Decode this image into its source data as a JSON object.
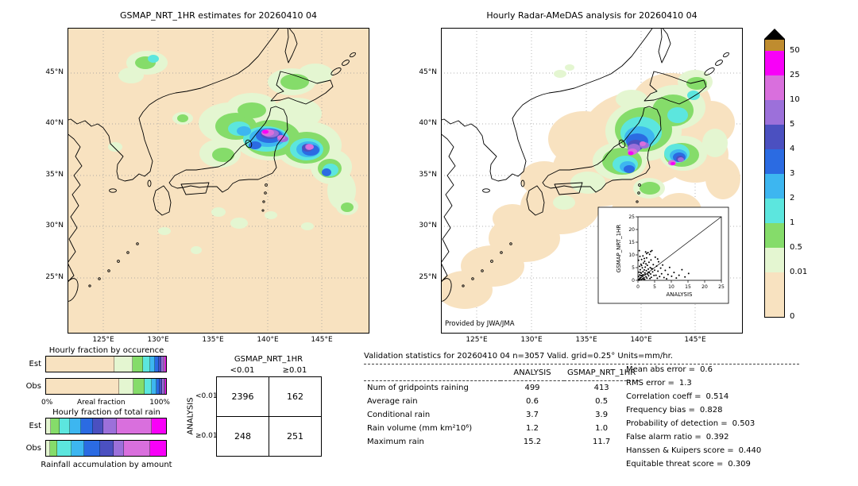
{
  "palette": {
    "peach": "#f8e2c0",
    "palegreen": "#e4f6d1",
    "green": "#85dc6a",
    "cyan": "#5ce6de",
    "lightblue": "#3db6f0",
    "blue": "#2b6be2",
    "navy": "#4b50c0",
    "purple": "#9c70da",
    "orchid": "#d96fdd",
    "magenta": "#f800f8",
    "tan": "#bf8c2f",
    "overflow": "#000000"
  },
  "chart_data": [
    {
      "type": "map",
      "name": "gsmap-estimates-map",
      "title": "GSMAP_NRT_1HR estimates for 20260410 04",
      "lat_ticks": [
        "25°N",
        "30°N",
        "35°N",
        "40°N",
        "45°N"
      ],
      "lon_ticks": [
        "125°E",
        "130°E",
        "135°E",
        "140°E",
        "145°E"
      ],
      "units": "mm/hr"
    },
    {
      "type": "map",
      "name": "radar-amedas-map",
      "title": "Hourly Radar-AMeDAS analysis for 20260410 04",
      "credit": "Provided by JWA/JMA",
      "units": "mm/hr"
    },
    {
      "type": "legend",
      "name": "rain-rate-colorbar",
      "labels": [
        "50",
        "25",
        "10",
        "5",
        "4",
        "3",
        "2",
        "1",
        "0.5",
        "0.01",
        "0"
      ],
      "segment_colors": [
        "tan",
        "magenta",
        "orchid",
        "purple",
        "navy",
        "blue",
        "lightblue",
        "cyan",
        "green",
        "palegreen",
        "peach"
      ]
    },
    {
      "type": "bar",
      "stacked": true,
      "name": "hourly-fraction-by-occurrence",
      "title": "Hourly fraction by occurence",
      "categories": [
        "Est",
        "Obs"
      ],
      "axis": {
        "min_label": "0%",
        "mid_label": "Areal fraction",
        "max_label": "100%"
      },
      "series": [
        {
          "name": "Est",
          "segments": [
            [
              "peach",
              57
            ],
            [
              "palegreen",
              15
            ],
            [
              "green",
              9
            ],
            [
              "cyan",
              6
            ],
            [
              "lightblue",
              4
            ],
            [
              "blue",
              3
            ],
            [
              "navy",
              2
            ],
            [
              "purple",
              2
            ],
            [
              "orchid",
              1.5
            ],
            [
              "magenta",
              0.5
            ]
          ]
        },
        {
          "name": "Obs",
          "segments": [
            [
              "peach",
              61
            ],
            [
              "palegreen",
              12
            ],
            [
              "green",
              9
            ],
            [
              "cyan",
              6
            ],
            [
              "lightblue",
              4
            ],
            [
              "blue",
              3
            ],
            [
              "navy",
              2
            ],
            [
              "purple",
              1.5
            ],
            [
              "orchid",
              1
            ],
            [
              "magenta",
              0.5
            ]
          ]
        }
      ]
    },
    {
      "type": "bar",
      "stacked": true,
      "name": "hourly-fraction-of-total-rain",
      "title": "Hourly fraction of total rain",
      "footer_label": "Rainfall accumulation by amount",
      "categories": [
        "Est",
        "Obs"
      ],
      "series": [
        {
          "name": "Est",
          "segments": [
            [
              "palegreen",
              4
            ],
            [
              "green",
              7
            ],
            [
              "cyan",
              9
            ],
            [
              "lightblue",
              9
            ],
            [
              "blue",
              10
            ],
            [
              "navy",
              9
            ],
            [
              "purple",
              11
            ],
            [
              "orchid",
              29
            ],
            [
              "magenta",
              12
            ]
          ]
        },
        {
          "name": "Obs",
          "segments": [
            [
              "palegreen",
              3
            ],
            [
              "green",
              6
            ],
            [
              "cyan",
              12
            ],
            [
              "lightblue",
              11
            ],
            [
              "blue",
              13
            ],
            [
              "navy",
              11
            ],
            [
              "purple",
              9
            ],
            [
              "orchid",
              22
            ],
            [
              "magenta",
              13
            ]
          ]
        }
      ]
    },
    {
      "type": "table",
      "name": "contingency-table",
      "title": "GSMAP_NRT_1HR",
      "row_axis": "ANALYSIS",
      "col_labels": [
        "<0.01",
        "≥0.01"
      ],
      "row_labels": [
        "<0.01",
        "≥0.01"
      ],
      "values": [
        [
          2396,
          162
        ],
        [
          248,
          251
        ]
      ]
    },
    {
      "type": "table",
      "name": "validation-statistics",
      "title": "Validation statistics for 20260410 04  n=3057 Valid. grid=0.25°  Units=mm/hr.",
      "col_headers": [
        "ANALYSIS",
        "GSMAP_NRT_1HR"
      ],
      "rows": [
        {
          "label": "Num of gridpoints raining",
          "analysis": "499",
          "gsmap": "413"
        },
        {
          "label": "Average rain",
          "analysis": "0.6",
          "gsmap": "0.5"
        },
        {
          "label": "Conditional rain",
          "analysis": "3.7",
          "gsmap": "3.9"
        },
        {
          "label": "Rain volume (mm km²10⁶)",
          "analysis": "1.2",
          "gsmap": "1.0"
        },
        {
          "label": "Maximum rain",
          "analysis": "15.2",
          "gsmap": "11.7"
        }
      ],
      "scores": [
        {
          "label": "Mean abs error =",
          "value": "0.6"
        },
        {
          "label": "RMS error =",
          "value": "1.3"
        },
        {
          "label": "Correlation coeff =",
          "value": "0.514"
        },
        {
          "label": "Frequency bias =",
          "value": "0.828"
        },
        {
          "label": "Probability of detection =",
          "value": "0.503"
        },
        {
          "label": "False alarm ratio =",
          "value": "0.392"
        },
        {
          "label": "Hanssen & Kuipers score =",
          "value": "0.440"
        },
        {
          "label": "Equitable threat score =",
          "value": "0.309"
        }
      ]
    },
    {
      "type": "scatter",
      "name": "gsmap-vs-analysis-inset",
      "xlabel": "ANALYSIS",
      "ylabel": "GSMAP_NRT_1HR",
      "xlim": [
        0,
        25
      ],
      "ylim": [
        0,
        25
      ],
      "ticks": [
        0,
        5,
        10,
        15,
        20,
        25
      ],
      "identity_line": true,
      "points": [
        [
          0.1,
          0.2
        ],
        [
          0.2,
          1.5
        ],
        [
          0.3,
          0.4
        ],
        [
          0.3,
          3.2
        ],
        [
          0.4,
          0.1
        ],
        [
          0.5,
          2.1
        ],
        [
          0.5,
          5.5
        ],
        [
          0.6,
          0.8
        ],
        [
          0.7,
          4.2
        ],
        [
          0.8,
          1.1
        ],
        [
          0.9,
          6.3
        ],
        [
          1,
          0.3
        ],
        [
          1,
          2.8
        ],
        [
          1.1,
          8.2
        ],
        [
          1.2,
          1.7
        ],
        [
          1.3,
          4.9
        ],
        [
          1.4,
          0.6
        ],
        [
          1.5,
          3.4
        ],
        [
          1.5,
          9.6
        ],
        [
          1.6,
          2.2
        ],
        [
          1.7,
          6.8
        ],
        [
          1.8,
          1
        ],
        [
          1.9,
          4.1
        ],
        [
          2,
          0.4
        ],
        [
          2,
          7.5
        ],
        [
          2.1,
          2.9
        ],
        [
          2.2,
          5.2
        ],
        [
          2.3,
          11.2
        ],
        [
          2.4,
          1.4
        ],
        [
          2.5,
          3.8
        ],
        [
          2.6,
          8.8
        ],
        [
          2.7,
          0.9
        ],
        [
          2.8,
          5.9
        ],
        [
          2.9,
          2.4
        ],
        [
          3,
          10.9
        ],
        [
          3.1,
          4.4
        ],
        [
          3.2,
          1.8
        ],
        [
          3.3,
          7.1
        ],
        [
          3.4,
          3
        ],
        [
          3.5,
          10.2
        ],
        [
          3.6,
          0.7
        ],
        [
          3.7,
          5
        ],
        [
          3.8,
          2.5
        ],
        [
          3.9,
          8
        ],
        [
          4,
          1.2
        ],
        [
          4.1,
          4.6
        ],
        [
          4.2,
          11.7
        ],
        [
          4.4,
          3.3
        ],
        [
          4.6,
          6.2
        ],
        [
          4.8,
          1.9
        ],
        [
          5,
          4
        ],
        [
          5.2,
          9.1
        ],
        [
          5.4,
          2
        ],
        [
          5.6,
          5.6
        ],
        [
          5.8,
          0.8
        ],
        [
          6,
          3.6
        ],
        [
          6.2,
          7.3
        ],
        [
          6.5,
          1.5
        ],
        [
          6.8,
          4.8
        ],
        [
          7.1,
          2.6
        ],
        [
          7.4,
          6
        ],
        [
          7.8,
          1.1
        ],
        [
          8.2,
          3.9
        ],
        [
          8.6,
          0.6
        ],
        [
          9,
          2.3
        ],
        [
          9.5,
          5.1
        ],
        [
          10.1,
          1.6
        ],
        [
          10.8,
          3.1
        ],
        [
          11.5,
          0.9
        ],
        [
          12.3,
          2
        ],
        [
          13.2,
          4.2
        ],
        [
          14.1,
          1.3
        ],
        [
          15.2,
          2.7
        ],
        [
          0.2,
          7.9
        ],
        [
          0.4,
          11.7
        ],
        [
          0.6,
          9.4
        ],
        [
          1.1,
          5.8
        ],
        [
          2.6,
          10.5
        ],
        [
          0.8,
          3.1
        ],
        [
          1.3,
          2
        ],
        [
          0.5,
          0.5
        ],
        [
          2.2,
          2.3
        ],
        [
          3.1,
          3.2
        ],
        [
          4.3,
          4.5
        ],
        [
          1.9,
          8.6
        ],
        [
          0.9,
          1.9
        ],
        [
          1.6,
          0.5
        ],
        [
          2.4,
          6.5
        ],
        [
          3.8,
          11.3
        ],
        [
          5.9,
          8.4
        ]
      ]
    }
  ]
}
